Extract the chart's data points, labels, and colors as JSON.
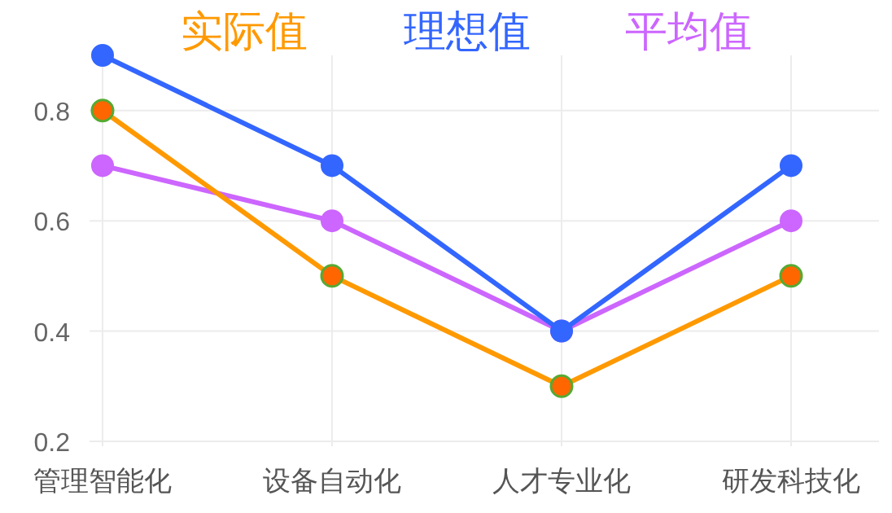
{
  "chart_data": {
    "type": "line",
    "categories": [
      "管理智能化",
      "设备自动化",
      "人才专业化",
      "研发科技化"
    ],
    "series": [
      {
        "name": "实际值",
        "color": "#ff9900",
        "colors": [
          "#ff6600",
          "#ff6600",
          "#ff6600",
          "#ff6600"
        ],
        "values": [
          0.8,
          0.5,
          0.3,
          0.5
        ]
      },
      {
        "name": "理想值",
        "color": "#3366ff",
        "values": [
          0.9,
          0.7,
          0.4,
          0.7
        ]
      },
      {
        "name": "平均值",
        "color": "#cc66ff",
        "values": [
          0.7,
          0.6,
          0.4,
          0.6
        ]
      }
    ],
    "ylim": [
      0.2,
      0.9
    ],
    "yticks": [
      0.2,
      0.4,
      0.6,
      0.8
    ],
    "grid": true,
    "legend": "top",
    "marker": "circle",
    "line_style": "solid"
  }
}
